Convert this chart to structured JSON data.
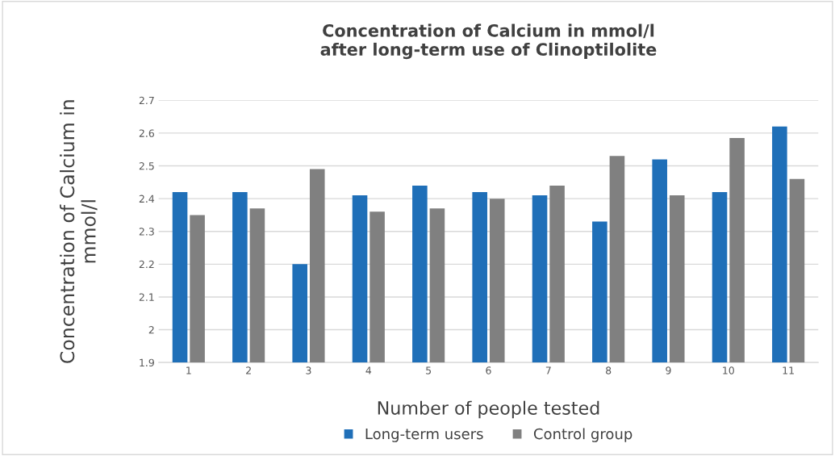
{
  "chart_data": {
    "type": "bar",
    "title": "Concentration of Calcium in mmol/l\nafter long-term use of Clinoptilolite",
    "xlabel": "Number of people tested",
    "ylabel": "Concentration of Calcium in\nmmol/l",
    "categories": [
      "1",
      "2",
      "3",
      "4",
      "5",
      "6",
      "7",
      "8",
      "9",
      "10",
      "11"
    ],
    "series": [
      {
        "name": "Long-term users",
        "color": "#1f6fb8",
        "values": [
          2.42,
          2.42,
          2.2,
          2.41,
          2.44,
          2.42,
          2.41,
          2.33,
          2.52,
          2.42,
          2.62
        ]
      },
      {
        "name": "Control group",
        "color": "#808080",
        "values": [
          2.35,
          2.37,
          2.49,
          2.36,
          2.37,
          2.4,
          2.44,
          2.53,
          2.41,
          2.585,
          2.46
        ]
      }
    ],
    "ylim": [
      1.9,
      2.7
    ],
    "yticks": [
      1.9,
      2,
      2.1,
      2.2,
      2.3,
      2.4,
      2.5,
      2.6,
      2.7
    ],
    "grid": "y",
    "legend": "bottom"
  }
}
